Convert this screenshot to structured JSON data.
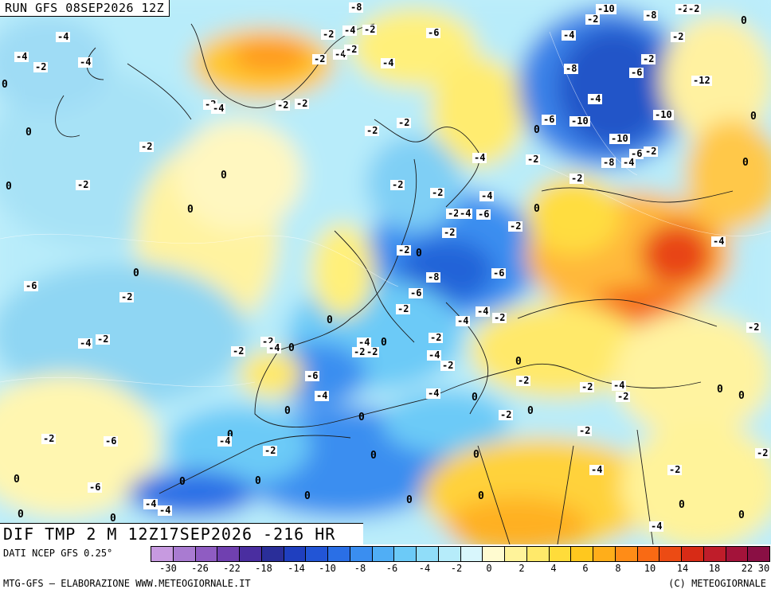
{
  "header": {
    "run_title": "RUN GFS 08SEP2026 12Z"
  },
  "footer": {
    "field_title": "DIF TMP 2 M 12Z17SEP2026 -216 HR",
    "data_source": "DATI NCEP GFS 0.25°",
    "credit_left": "MTG-GFS – ELABORAZIONE WWW.METEOGIORNALE.IT",
    "credit_right": "(C) METEOGIORNALE"
  },
  "legend": {
    "colors": [
      "#c79ae0",
      "#a97bd1",
      "#8f5cc2",
      "#7040b0",
      "#4a2ea0",
      "#2a2e99",
      "#1f3fbf",
      "#2255d6",
      "#2a6fe6",
      "#3a8ef0",
      "#50aef5",
      "#6ccaf7",
      "#90ddf9",
      "#b6ecfa",
      "#d8f6fc",
      "#fffbd0",
      "#fff39a",
      "#ffe96a",
      "#ffdc3a",
      "#ffc81e",
      "#ffae1a",
      "#ff8c17",
      "#f96a14",
      "#ec4b14",
      "#d72b16",
      "#bf1d2a",
      "#a3133a",
      "#8a0f44"
    ],
    "tick_labels": [
      "-30",
      "-26",
      "-22",
      "-18",
      "-14",
      "-10",
      "-8",
      "-6",
      "-4",
      "-2",
      "0",
      "2",
      "4",
      "6",
      "8",
      "10",
      "14",
      "18",
      "22",
      "30"
    ]
  },
  "isoline_labels": [
    "-8",
    "-2",
    "-10",
    "-8",
    "-2",
    "-2",
    "0",
    "-4",
    "-2",
    "-4",
    "-2",
    "-6",
    "-4",
    "-2",
    "-4",
    "-2",
    "-4",
    "-2",
    "-4",
    "-2",
    "-4",
    "-2",
    "-8",
    "-6",
    "-12",
    "0",
    "-2",
    "-4",
    "-2",
    "-2",
    "-4",
    "-10",
    "0",
    "-6",
    "-10",
    "0",
    "0",
    "-2",
    "-2",
    "-4",
    "-10",
    "-2",
    "-6",
    "-8",
    "-2",
    "-2",
    "0",
    "-4",
    "-2",
    "0",
    "-2",
    "-2",
    "-2",
    "0",
    "-4",
    "0",
    "-2",
    "-4",
    "-6",
    "0",
    "-2",
    "-2",
    "-4",
    "-2",
    "0",
    "-6",
    "-8",
    "-6",
    "-6",
    "0",
    "-2",
    "-2",
    "-4",
    "-2",
    "0",
    "-4",
    "-2",
    "-2",
    "-2",
    "-4",
    "0",
    "-2",
    "-4",
    "-2",
    "-4",
    "0",
    "-2",
    "-2",
    "-4",
    "-2",
    "-6",
    "0",
    "-2",
    "-4",
    "-4",
    "0",
    "-2",
    "-4",
    "-2",
    "0",
    "0",
    "-2",
    "0",
    "0",
    "0",
    "-2",
    "-6",
    "0",
    "-4",
    "-2",
    "0",
    "0",
    "-2",
    "-2",
    "0",
    "-6",
    "0",
    "0",
    "-4",
    "-2",
    "0",
    "0",
    "0",
    "-4",
    "-4",
    "0",
    "0",
    "0",
    "-4",
    "0",
    "0",
    "-2",
    "0"
  ]
}
